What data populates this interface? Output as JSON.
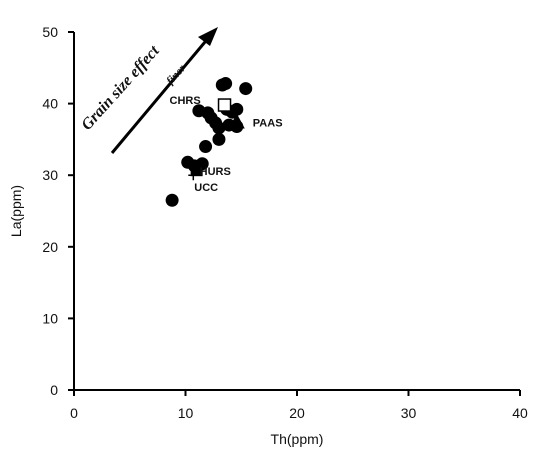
{
  "chart_data": {
    "type": "scatter",
    "title": "",
    "xlabel": "Th(ppm)",
    "ylabel": "La(ppm)",
    "xlim": [
      0,
      40
    ],
    "ylim": [
      0,
      50
    ],
    "xticks": [
      "0",
      "10",
      "20",
      "30",
      "40"
    ],
    "yticks": [
      "0",
      "10",
      "20",
      "30",
      "40",
      "50"
    ],
    "grid": false,
    "series": [
      {
        "marker": "filled-circle",
        "points": [
          [
            8.8,
            26.5
          ],
          [
            10.2,
            31.8
          ],
          [
            10.8,
            31.3
          ],
          [
            11.5,
            31.6
          ],
          [
            11.8,
            34.0
          ],
          [
            11.2,
            39.0
          ],
          [
            12.0,
            38.7
          ],
          [
            12.3,
            38.0
          ],
          [
            12.7,
            37.3
          ],
          [
            13.0,
            36.6
          ],
          [
            13.0,
            35.0
          ],
          [
            13.3,
            42.6
          ],
          [
            13.6,
            42.8
          ],
          [
            13.7,
            39.2
          ],
          [
            13.9,
            37.0
          ],
          [
            14.2,
            38.8
          ],
          [
            14.6,
            36.8
          ],
          [
            14.6,
            39.2
          ],
          [
            15.4,
            42.1
          ]
        ]
      }
    ],
    "reference_points": [
      {
        "label": "CHRS",
        "x": 13.5,
        "y": 39.8,
        "marker": "open-square"
      },
      {
        "label": "PAAS",
        "x": 14.6,
        "y": 37.5,
        "marker": "filled-triangle"
      },
      {
        "label": "HURS",
        "x": 11.0,
        "y": 30.7,
        "marker": "filled-square"
      },
      {
        "label": "UCC",
        "x": 10.7,
        "y": 30.0,
        "marker": "cross"
      }
    ],
    "annotations": {
      "arrow_text": "Grain size effect",
      "arrow_subtext": "finer"
    }
  }
}
